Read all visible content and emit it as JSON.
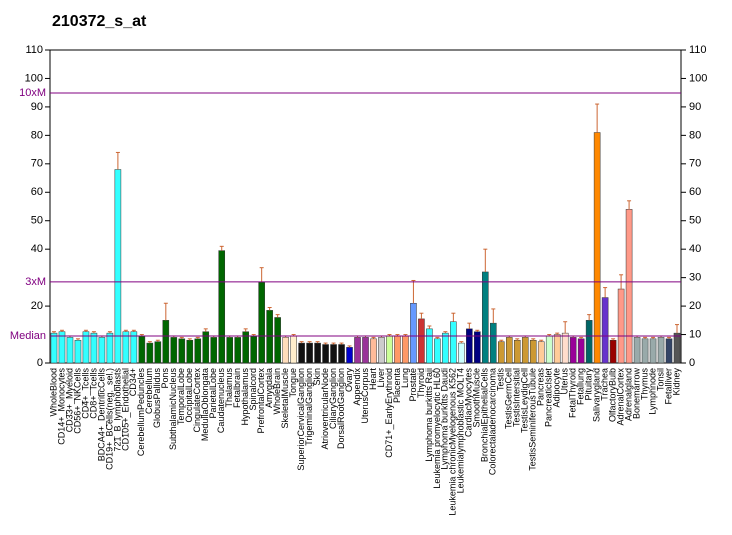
{
  "chart_data": {
    "type": "bar",
    "title": "210372_s_at",
    "categories": [
      "WholeBlood",
      "CD14+_Monocytes",
      "CD33+_Myeloid",
      "CD56+_NKCells",
      "CD4+_Tcells",
      "CD8+_Tcells",
      "BDCA4+_DentriticCells",
      "CD19+_BCells(neg._sel.)",
      "721_B_lymphoblasts",
      "CD105+_Endothelial",
      "CD34+",
      "CerebellumPeduncles",
      "Cerebellum",
      "GlobusPallidus",
      "Pons",
      "SubthalamicNucleus",
      "TemporalLobe",
      "OccipitalLobe",
      "CingulateCortex",
      "MedullaOblongata",
      "ParietalLobe",
      "Caudatenucleus",
      "Thalamus",
      "Fetalbrain",
      "Hypothalamus",
      "Spinalcord",
      "PrefrontalCortex",
      "Amygdala",
      "WholeBrain",
      "SkeletalMuscle",
      "Tongue",
      "SuperiorCervicalGanglion",
      "TrigeminalGanglion",
      "Skin",
      "AtrioventricularNode",
      "CiliaryGanglion",
      "DorsalRootGanglion",
      "Ovary",
      "Appendix",
      "UterusCorpus",
      "Heart",
      "Liver",
      "CD71+_EarlyErythroid",
      "Placenta",
      "Lung",
      "Prostate",
      "Thyroid",
      "Lymphoma burkitts Raji",
      "Leukemia promyelocytic HL60",
      "Lymphoma burkitts Daudi",
      "Leukemia chronicMyelogenous K562",
      "Leukemialymphoblastic MOLT4",
      "CardiacMyocytes",
      "SmoothMuscle",
      "BronchialEpithelialCells",
      "Colorectaladenocarcinoma",
      "Testis",
      "TestisGermCell",
      "TestisIntersitial",
      "TestisLeydigCell",
      "TestisSeminiferousTubule",
      "Pancreas",
      "PancreaticIslet",
      "Adipocyte",
      "Uterus",
      "FetalThyroid",
      "Fetallung",
      "Pituitary",
      "Salivarygland",
      "Trachea",
      "OlfactoryBulb",
      "AdrenalCortex",
      "Adrenalgland",
      "Bonemarrow",
      "Thymus",
      "Lymphnode",
      "Tonsil",
      "Fetalliver",
      "Kidney"
    ],
    "values": [
      10.5,
      11,
      9,
      8,
      11,
      10.5,
      9,
      10.5,
      68,
      11,
      11,
      9.5,
      7,
      7.5,
      15,
      9,
      8.5,
      8,
      8.5,
      11,
      9,
      39.5,
      9,
      9,
      11,
      9.5,
      28.5,
      18.5,
      16,
      9,
      9.5,
      7,
      7,
      7,
      6.5,
      6.5,
      6.5,
      5.5,
      9,
      9,
      8.5,
      9,
      9.5,
      9.5,
      9.5,
      21,
      15.5,
      12,
      8.5,
      10.5,
      14.5,
      7,
      12,
      11,
      32,
      14,
      7.5,
      9,
      8,
      9,
      8,
      7.5,
      9.5,
      10,
      10.5,
      9,
      8.5,
      15,
      81,
      23,
      8,
      26,
      54,
      9,
      8.5,
      8.5,
      9,
      8.5,
      10.5
    ],
    "errors": [
      0.5,
      0.5,
      0.5,
      0.5,
      0.5,
      0.5,
      0.5,
      0.5,
      6,
      0.5,
      0.5,
      0.5,
      0.5,
      0.5,
      6,
      0.5,
      0.5,
      0.5,
      0.5,
      1,
      0.5,
      1.5,
      0.5,
      0.5,
      1,
      0.5,
      5,
      1,
      1,
      0.5,
      0.5,
      0.5,
      0.5,
      0.5,
      0.5,
      0.5,
      0.5,
      0.5,
      0.5,
      0.5,
      0.5,
      0.5,
      0.5,
      0.5,
      0.5,
      8,
      2,
      1,
      0.5,
      0.5,
      3,
      0.5,
      2,
      0.5,
      8,
      5,
      0.5,
      0.5,
      0.5,
      0.5,
      0.5,
      0.5,
      0.5,
      0.5,
      4,
      0.5,
      0.5,
      2,
      10,
      3.5,
      0.5,
      5,
      3,
      0.5,
      0.5,
      0.5,
      0.5,
      0.5,
      3
    ],
    "colors": [
      "#33ffff",
      "#33ffff",
      "#33ffff",
      "#33ffff",
      "#33ffff",
      "#33ffff",
      "#33ffff",
      "#33ffff",
      "#33ffff",
      "#33ffff",
      "#33ffff",
      "#006600",
      "#006600",
      "#006600",
      "#006600",
      "#006600",
      "#006600",
      "#006600",
      "#006600",
      "#006600",
      "#006600",
      "#006600",
      "#006600",
      "#006600",
      "#006600",
      "#006600",
      "#006600",
      "#006600",
      "#006600",
      "#ffddbb",
      "#ffeecc",
      "#111111",
      "#111111",
      "#111111",
      "#111111",
      "#111111",
      "#111111",
      "#0000cc",
      "#993399",
      "#993399",
      "#ffbb99",
      "#cccccc",
      "#ccff99",
      "#ff9966",
      "#ff9966",
      "#6699ff",
      "#cc3333",
      "#33ffff",
      "#33ffff",
      "#33ffff",
      "#33ffff",
      "#ccffff",
      "#000080",
      "#000080",
      "#008080",
      "#008080",
      "#cc9933",
      "#cc9933",
      "#cc9933",
      "#cc9933",
      "#cc9933",
      "#ffcc99",
      "#ccffcc",
      "#ffcc99",
      "#ffddcc",
      "#990099",
      "#990099",
      "#006666",
      "#ff8800",
      "#6633cc",
      "#990000",
      "#ff9988",
      "#ff9988",
      "#99aaaa",
      "#99aaaa",
      "#99aaaa",
      "#99aaaa",
      "#334466",
      "#555555"
    ],
    "error_color": "#cc6633",
    "reference_lines": [
      {
        "label": "10xM",
        "value": 94.9
      },
      {
        "label": "3xM",
        "value": 28.5
      },
      {
        "label": "Median",
        "value": 9.5
      }
    ],
    "reference_color": "#800080",
    "ylim": [
      0,
      110
    ],
    "yticks": [
      0,
      20,
      40,
      50,
      60,
      70,
      80,
      90,
      100,
      110
    ],
    "y2lim": [
      0,
      110
    ],
    "y2ticks": [
      0,
      10,
      20,
      30,
      40,
      50,
      60,
      70,
      80,
      90,
      100,
      110
    ]
  }
}
